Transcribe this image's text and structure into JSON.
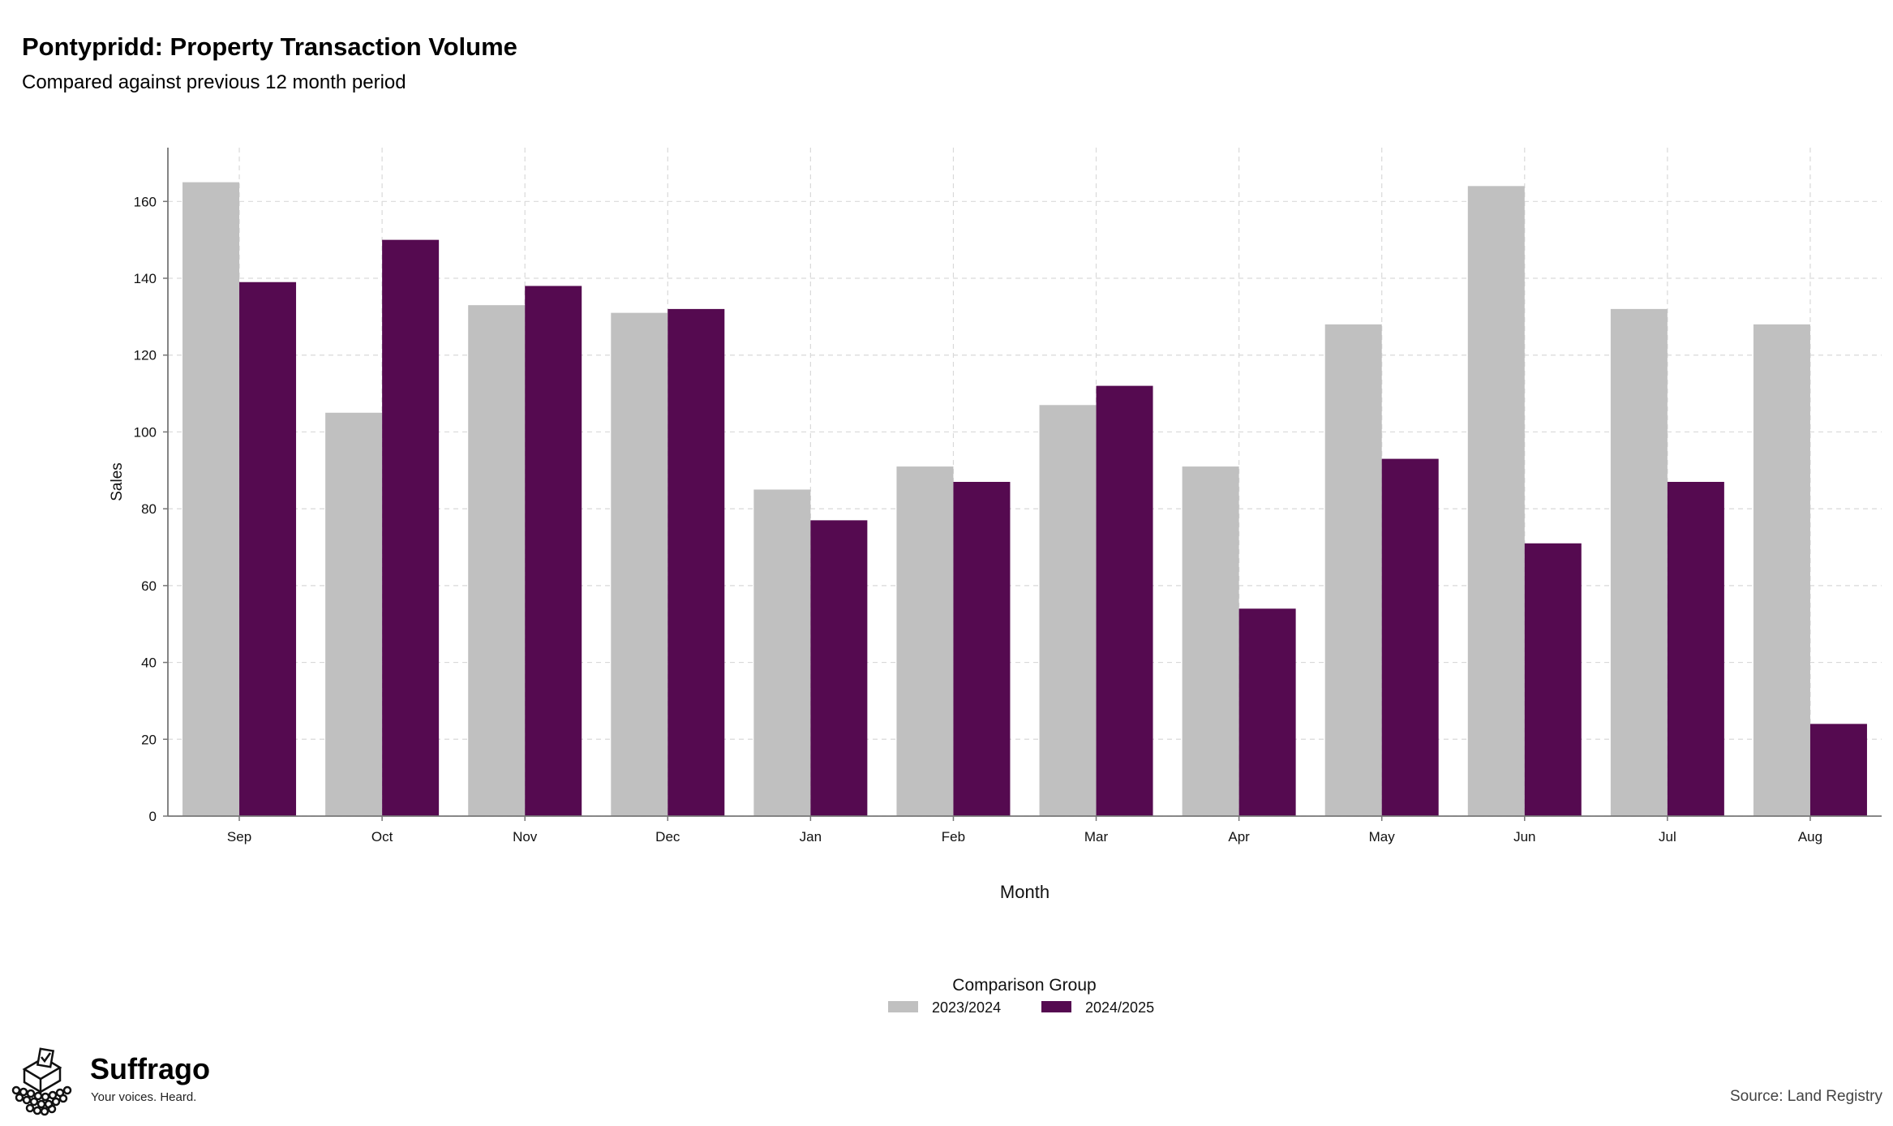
{
  "chart_data": {
    "type": "bar",
    "title": "Pontypridd: Property Transaction Volume",
    "subtitle": "Compared against previous 12 month period",
    "xlabel": "Month",
    "ylabel": "Sales",
    "ylim": [
      0,
      174
    ],
    "yticks": [
      0,
      20,
      40,
      60,
      80,
      100,
      120,
      140,
      160
    ],
    "grid": true,
    "categories": [
      "Sep",
      "Oct",
      "Nov",
      "Dec",
      "Jan",
      "Feb",
      "Mar",
      "Apr",
      "May",
      "Jun",
      "Jul",
      "Aug"
    ],
    "series": [
      {
        "name": "2023/2024",
        "color": "#c0c0c0",
        "values": [
          165,
          105,
          133,
          131,
          85,
          91,
          107,
          91,
          128,
          164,
          132,
          128
        ]
      },
      {
        "name": "2024/2025",
        "color": "#550a50",
        "values": [
          139,
          150,
          138,
          132,
          77,
          87,
          112,
          54,
          93,
          71,
          87,
          24
        ]
      }
    ],
    "legend": {
      "title": "Comparison Group",
      "placement": "bottom"
    }
  },
  "logo": {
    "name": "Suffrago",
    "tagline": "Your voices. Heard.",
    "icon": "ballot-box-icon"
  },
  "source": "Source: Land Registry"
}
